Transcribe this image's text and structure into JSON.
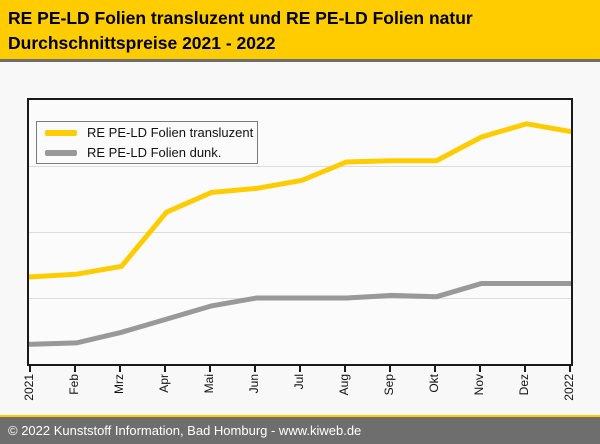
{
  "header": {
    "title_line1": "RE PE-LD Folien transluzent und RE PE-LD Folien natur",
    "title_line2": "Durchschnittspreise 2021 - 2022",
    "bg_color": "#FFCC00"
  },
  "footer": {
    "text": "© 2022 Kunststoff Information, Bad Homburg - www.kiweb.de",
    "bg_color": "#6E6E6E",
    "accent_color": "#FFCC00"
  },
  "chart_data": {
    "type": "line",
    "title": "RE PE-LD Folien transluzent und RE PE-LD Folien natur Durchschnittspreise 2021 - 2022",
    "categories": [
      "2021",
      "Feb",
      "Mrz",
      "Apr",
      "Mai",
      "Jun",
      "Jul",
      "Aug",
      "Sep",
      "Okt",
      "Nov",
      "Dez",
      "2022"
    ],
    "x_axis": {
      "tick_labels_rotated_90_ccw": true
    },
    "y_axis": {
      "tick_labels_shown": false,
      "note": "no numeric y-axis labels are visible in the chart; series values below are percent of plot height (0 = bottom axis, 100 = top border)",
      "gridlines_percent": [
        25,
        50,
        75
      ],
      "grid": true
    },
    "legend": {
      "position": "top-left",
      "border": true
    },
    "series": [
      {
        "name": "RE PE-LD Folien transluzent",
        "color": "#FFCC00",
        "values_percent": [
          33,
          34,
          37,
          57.5,
          65,
          66.5,
          69.5,
          76.5,
          77,
          77,
          86,
          91,
          88
        ]
      },
      {
        "name": "RE PE-LD Folien dunk.",
        "color": "#999999",
        "values_percent": [
          7.5,
          8,
          12,
          17,
          22,
          25,
          25,
          25,
          26,
          25.5,
          30.5,
          30.5,
          30.5
        ]
      }
    ]
  }
}
